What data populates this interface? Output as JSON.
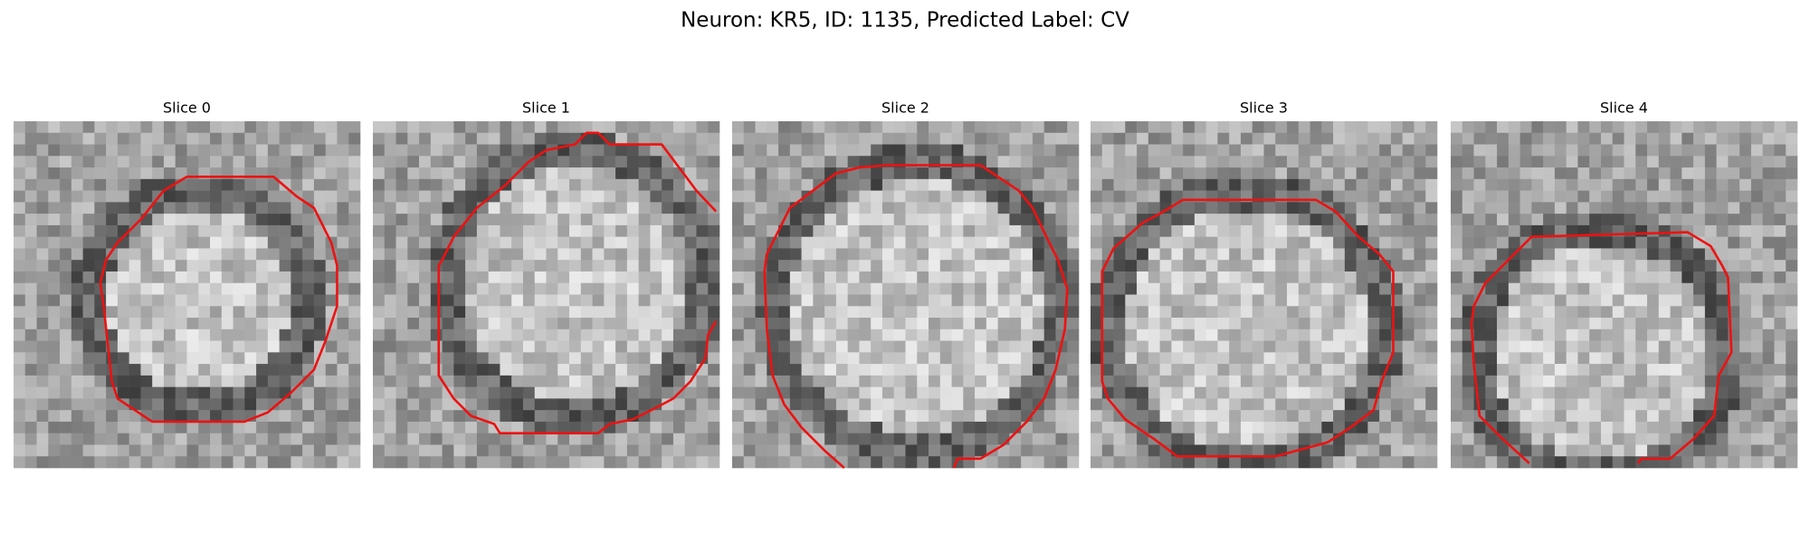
{
  "title": "Neuron: KR5, ID: 1135, Predicted Label: CV",
  "panels": [
    {
      "title": "Slice 0"
    },
    {
      "title": "Slice 1"
    },
    {
      "title": "Slice 2"
    },
    {
      "title": "Slice 3"
    },
    {
      "title": "Slice 4"
    }
  ]
}
